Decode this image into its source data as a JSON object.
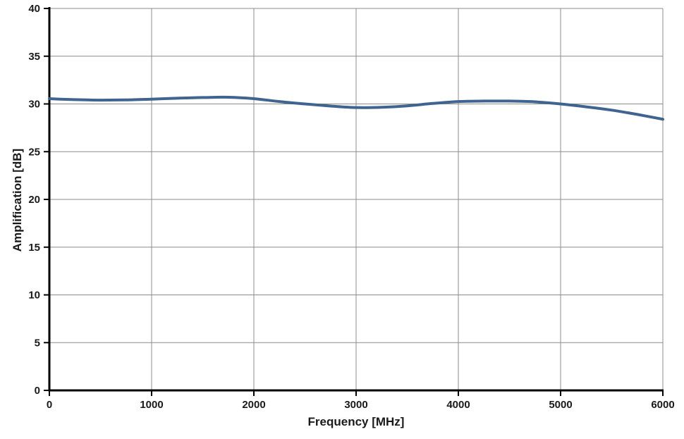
{
  "chart_data": {
    "type": "line",
    "title": "",
    "xlabel": "Frequency [MHz]",
    "ylabel": "Amplification [dB]",
    "xlim": [
      0,
      6000
    ],
    "ylim": [
      0,
      40
    ],
    "x_ticks": [
      0,
      1000,
      2000,
      3000,
      4000,
      5000,
      6000
    ],
    "y_ticks": [
      0,
      5,
      10,
      15,
      20,
      25,
      30,
      35,
      40
    ],
    "grid": true,
    "legend_position": "none",
    "colors": {
      "line": "#3F648F",
      "grid": "#8C8C8C",
      "axis": "#000000",
      "background": "#FFFFFF",
      "text": "#1A1A1A"
    },
    "series": [
      {
        "name": "Amplification",
        "x": [
          0,
          250,
          500,
          750,
          1000,
          1250,
          1500,
          1750,
          2000,
          2250,
          2500,
          2750,
          3000,
          3250,
          3500,
          3750,
          4000,
          4250,
          4500,
          4750,
          5000,
          5250,
          5500,
          5750,
          6000
        ],
        "y": [
          30.55,
          30.45,
          30.4,
          30.42,
          30.5,
          30.6,
          30.67,
          30.7,
          30.55,
          30.25,
          30.0,
          29.78,
          29.62,
          29.65,
          29.8,
          30.05,
          30.25,
          30.3,
          30.3,
          30.22,
          30.0,
          29.7,
          29.35,
          28.9,
          28.4
        ]
      }
    ]
  }
}
